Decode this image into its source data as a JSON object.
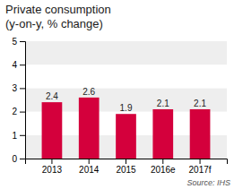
{
  "chart_data": {
    "type": "bar",
    "title": "Private consumption",
    "subtitle": "(y-on-y, % change)",
    "categories": [
      "2013",
      "2014",
      "2015",
      "2016e",
      "2017f"
    ],
    "values": [
      2.4,
      2.6,
      1.9,
      2.1,
      2.1
    ],
    "color": "#d4003c",
    "ylim": [
      0,
      5
    ],
    "yticks": [
      0,
      1,
      2,
      3,
      4,
      5
    ],
    "grid": true,
    "data_labels": true,
    "annotations": [
      "Source: IHS"
    ]
  }
}
